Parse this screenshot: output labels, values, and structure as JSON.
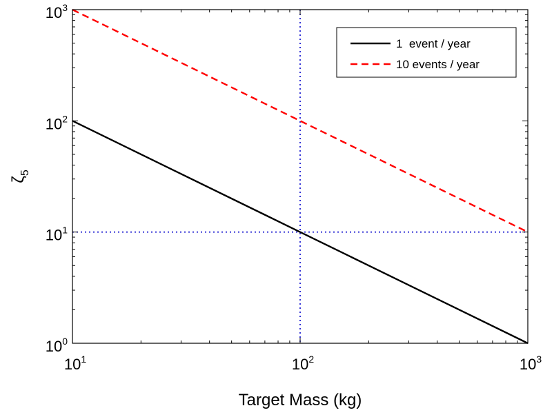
{
  "chart_data": {
    "type": "line",
    "title": "",
    "xlabel": "Target Mass (kg)",
    "ylabel": "ζ",
    "ylabel_subscript": "5",
    "xscale": "log",
    "yscale": "log",
    "xlim": [
      10,
      1000
    ],
    "ylim": [
      1,
      1000
    ],
    "x_ticks": [
      {
        "base": "10",
        "exp": "1"
      },
      {
        "base": "10",
        "exp": "2"
      },
      {
        "base": "10",
        "exp": "3"
      }
    ],
    "y_ticks": [
      {
        "base": "10",
        "exp": "0"
      },
      {
        "base": "10",
        "exp": "1"
      },
      {
        "base": "10",
        "exp": "2"
      },
      {
        "base": "10",
        "exp": "3"
      }
    ],
    "grid": false,
    "legend_position": "top-right",
    "series": [
      {
        "name": "1  event / year",
        "color": "#000000",
        "style": "solid",
        "x": [
          10,
          100,
          1000
        ],
        "y": [
          100,
          10,
          1
        ]
      },
      {
        "name": "10 events / year",
        "color": "#ff0000",
        "style": "dashed",
        "x": [
          10,
          100,
          1000
        ],
        "y": [
          1000,
          100,
          10
        ]
      }
    ],
    "reference_lines": [
      {
        "orientation": "vertical",
        "x": 100,
        "color": "#0000cc",
        "style": "dotted"
      },
      {
        "orientation": "horizontal",
        "y": 10,
        "color": "#0000cc",
        "style": "dotted"
      }
    ]
  }
}
